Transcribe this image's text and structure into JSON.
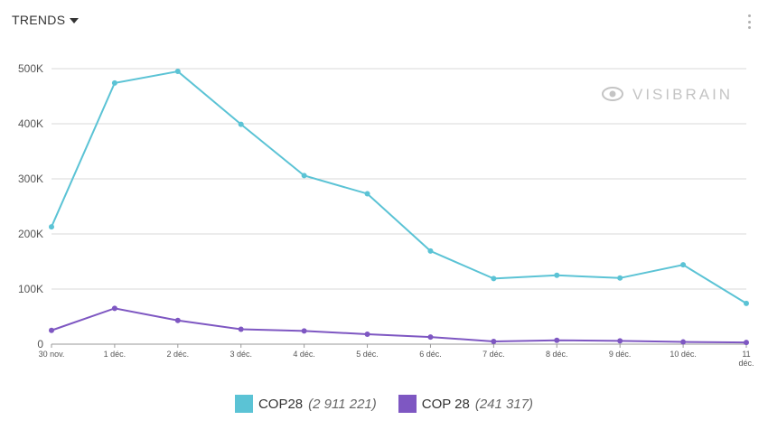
{
  "header": {
    "title": "TRENDS",
    "menu_icon": "dropdown-caret-icon",
    "more_icon": "kebab-menu-icon"
  },
  "watermark": {
    "text": "VISIBRAIN",
    "icon": "eye-icon"
  },
  "colors": {
    "series1": "#5bc3d5",
    "series2": "#7e57c2",
    "grid": "#d9d9d9",
    "axis": "#9a9a9a"
  },
  "legend": [
    {
      "name": "COP28",
      "count": "(2 911 221)"
    },
    {
      "name": "COP 28",
      "count": "(241 317)"
    }
  ],
  "chart_data": {
    "type": "line",
    "title": "TRENDS",
    "categories": [
      "30 nov.",
      "1 déc.",
      "2 déc.",
      "3 déc.",
      "4 déc.",
      "5 déc.",
      "6 déc.",
      "7 déc.",
      "8 déc.",
      "9 déc.",
      "10 déc.",
      "11 déc."
    ],
    "yticks": [
      "0",
      "100K",
      "200K",
      "300K",
      "400K",
      "500K"
    ],
    "ylim": [
      0,
      500000
    ],
    "grid": true,
    "legend_position": "bottom",
    "series": [
      {
        "name": "COP28",
        "values": [
          213000,
          474000,
          495000,
          399000,
          306000,
          273000,
          169000,
          119000,
          125000,
          120000,
          144000,
          74000
        ]
      },
      {
        "name": "COP 28",
        "values": [
          25000,
          65000,
          43000,
          27000,
          24000,
          18000,
          13000,
          5000,
          7000,
          6000,
          4000,
          3000
        ]
      }
    ]
  }
}
